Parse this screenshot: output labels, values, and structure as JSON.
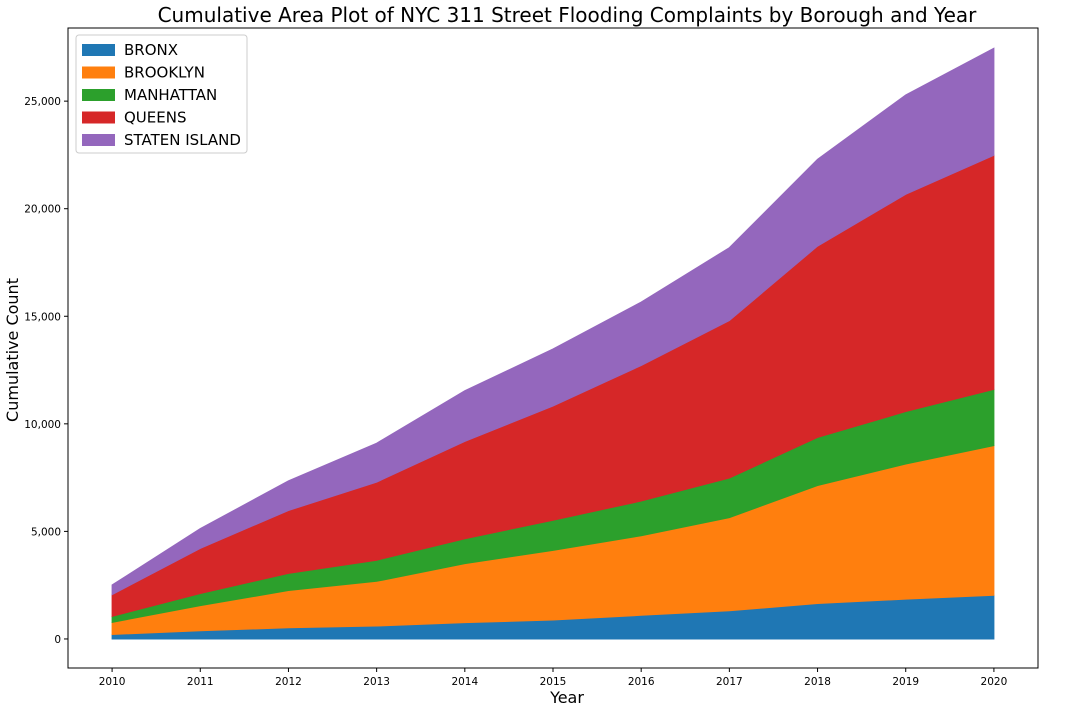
{
  "chart_data": {
    "type": "area",
    "stacked": true,
    "title": "Cumulative Area Plot of NYC 311 Street Flooding Complaints by Borough and Year",
    "xlabel": "Year",
    "ylabel": "Cumulative Count",
    "x": [
      2010,
      2011,
      2012,
      2013,
      2014,
      2015,
      2016,
      2017,
      2018,
      2019,
      2020
    ],
    "x_tick_labels": [
      "2010",
      "2011",
      "2012",
      "2013",
      "2014",
      "2015",
      "2016",
      "2017",
      "2018",
      "2019",
      "2020"
    ],
    "y_ticks": [
      0,
      5000,
      10000,
      15000,
      20000,
      25000
    ],
    "y_tick_labels": [
      "0",
      "5,000",
      "10,000",
      "15,000",
      "20,000",
      "25,000"
    ],
    "ylim": [
      -1350,
      28400
    ],
    "xlim": [
      2009.5,
      2020.5
    ],
    "grid": false,
    "legend_position": "top-left",
    "series": [
      {
        "name": "BRONX",
        "color": "#1f77b4",
        "values": [
          210,
          380,
          520,
          600,
          760,
          880,
          1100,
          1310,
          1650,
          1850,
          2030
        ]
      },
      {
        "name": "BROOKLYN",
        "color": "#ff7f0e",
        "values": [
          560,
          1170,
          1730,
          2080,
          2740,
          3240,
          3700,
          4330,
          5480,
          6280,
          6960
        ]
      },
      {
        "name": "MANHATTAN",
        "color": "#2ca02c",
        "values": [
          280,
          560,
          800,
          980,
          1160,
          1400,
          1610,
          1840,
          2240,
          2440,
          2610
        ]
      },
      {
        "name": "QUEENS",
        "color": "#d62728",
        "values": [
          1010,
          2100,
          2920,
          3630,
          4520,
          5310,
          6300,
          7320,
          8890,
          10100,
          10880
        ]
      },
      {
        "name": "STATEN ISLAND",
        "color": "#9467bd",
        "values": [
          450,
          920,
          1380,
          1810,
          2360,
          2650,
          2950,
          3390,
          4040,
          4620,
          4980
        ]
      }
    ]
  }
}
